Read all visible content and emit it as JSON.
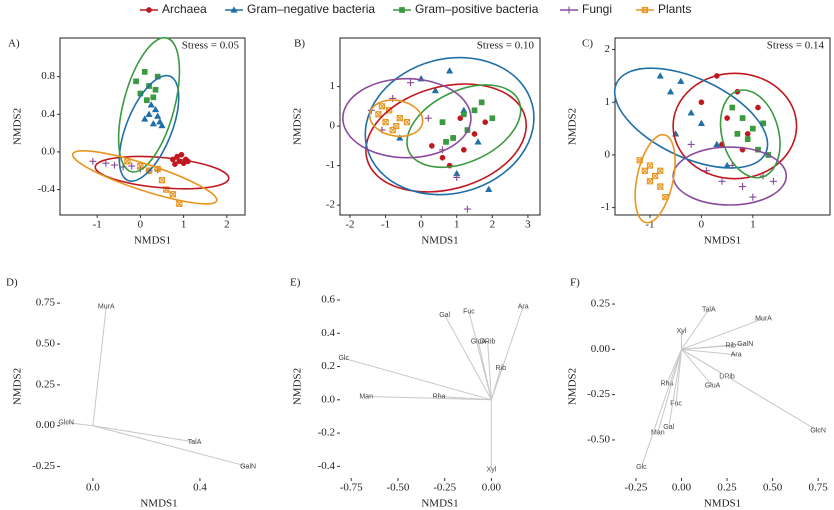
{
  "chart_data": [
    {
      "type": "scatter",
      "panel": "A)",
      "annotation": "Stress = 0.05",
      "x_label": "NMDS1",
      "y_label": "NMDS2",
      "xlim": [
        -1.86,
        2.42
      ],
      "ylim": [
        -0.67,
        1.21
      ],
      "xticks": [
        -1,
        0,
        1,
        2
      ],
      "yticks": [
        {
          "value": 0.8,
          "label": "0.8"
        },
        {
          "value": 0.4,
          "label": "0.4"
        },
        {
          "value": 0,
          "label": "0.0"
        },
        {
          "value": -0.4,
          "label": "-0.4"
        }
      ],
      "series": [
        {
          "name": "Archaea",
          "color": "#c0181f",
          "marker": "circle",
          "x": [
            0.75,
            0.85,
            0.9,
            1.0,
            1.05,
            1.1,
            0.8,
            0.95
          ],
          "y": [
            -0.08,
            -0.05,
            -0.1,
            -0.12,
            -0.08,
            -0.1,
            -0.13,
            -0.03
          ],
          "ellipse": {
            "cx": 0.5,
            "cy": -0.22,
            "rx": 1.55,
            "ry": 0.16,
            "angle": 5
          }
        },
        {
          "name": "Gram–negative bacteria",
          "color": "#1f6fa8",
          "marker": "triangle",
          "x": [
            0.1,
            0.2,
            0.3,
            0.35,
            0.4,
            0.45,
            0.25,
            0.5
          ],
          "y": [
            0.35,
            0.4,
            0.3,
            0.45,
            0.38,
            0.32,
            0.5,
            0.28
          ],
          "ellipse": {
            "cx": 0.2,
            "cy": 0.25,
            "rx": 1.3,
            "ry": 0.24,
            "angle": -68
          }
        },
        {
          "name": "Gram–positive bacteria",
          "color": "#3a9a3f",
          "marker": "square",
          "x": [
            -0.1,
            0.0,
            0.1,
            0.2,
            0.3,
            0.35,
            0.15,
            0.4
          ],
          "y": [
            0.75,
            0.62,
            0.85,
            0.7,
            0.58,
            0.66,
            0.55,
            0.8
          ],
          "ellipse": {
            "cx": 0.2,
            "cy": 0.5,
            "rx": 1.6,
            "ry": 0.27,
            "angle": -75
          }
        },
        {
          "name": "Fungi",
          "color": "#8b4a9c",
          "marker": "plus",
          "x": [
            -1.1,
            -0.8,
            -0.6,
            -0.4,
            -0.2,
            0.0,
            0.2,
            0.4
          ],
          "y": [
            -0.1,
            -0.12,
            -0.14,
            -0.16,
            -0.15,
            -0.18,
            -0.2,
            -0.19
          ]
        },
        {
          "name": "Plants",
          "color": "#e8951f",
          "marker": "xsquare",
          "x": [
            -0.3,
            0.0,
            0.2,
            0.4,
            0.5,
            0.6,
            0.75,
            0.9
          ],
          "y": [
            -0.1,
            -0.15,
            -0.2,
            -0.18,
            -0.3,
            -0.4,
            -0.45,
            -0.55
          ],
          "ellipse": {
            "cx": 0.1,
            "cy": -0.27,
            "rx": 1.75,
            "ry": 0.14,
            "angle": 18
          }
        }
      ]
    },
    {
      "type": "scatter",
      "panel": "B)",
      "annotation": "Stress = 0.10",
      "x_label": "NMDS1",
      "y_label": "NMDS2",
      "xlim": [
        -2.28,
        3.34
      ],
      "ylim": [
        -2.25,
        2.23
      ],
      "xticks": [
        -2,
        -1,
        0,
        1,
        2,
        3
      ],
      "yticks": [
        1,
        0,
        -1,
        -2
      ],
      "series": [
        {
          "color": "#c0181f",
          "marker": "circle",
          "x": [
            0.3,
            0.6,
            0.9,
            1.2,
            1.5,
            1.8,
            0.8,
            1.1
          ],
          "y": [
            -0.5,
            -0.8,
            -0.3,
            -0.6,
            -0.2,
            0.1,
            -1.0,
            0.2
          ],
          "ellipse": {
            "cx": 0.7,
            "cy": -0.3,
            "rx": 2.3,
            "ry": 1.3,
            "angle": -15
          }
        },
        {
          "color": "#1f6fa8",
          "marker": "triangle",
          "x": [
            -0.6,
            0.0,
            0.4,
            0.8,
            1.2,
            1.6,
            1.9,
            1.0
          ],
          "y": [
            -0.3,
            1.2,
            0.9,
            1.4,
            0.4,
            -0.4,
            -1.6,
            -1.2
          ],
          "ellipse": {
            "cx": 0.8,
            "cy": 0.0,
            "rx": 2.4,
            "ry": 1.7,
            "angle": -15
          }
        },
        {
          "color": "#3a9a3f",
          "marker": "square",
          "x": [
            0.6,
            0.9,
            1.2,
            1.5,
            1.7,
            2.0,
            1.3,
            0.7
          ],
          "y": [
            0.1,
            -0.3,
            0.3,
            0.4,
            0.6,
            0.2,
            -0.1,
            -0.4
          ],
          "ellipse": {
            "cx": 1.2,
            "cy": 0.0,
            "rx": 1.7,
            "ry": 0.9,
            "angle": -25
          }
        },
        {
          "color": "#8b4a9c",
          "marker": "plus",
          "x": [
            -1.4,
            -1.1,
            -0.8,
            -0.3,
            0.2,
            0.6,
            1.0,
            1.3
          ],
          "y": [
            0.4,
            -0.1,
            0.7,
            1.1,
            0.2,
            -0.6,
            -1.3,
            -2.1
          ],
          "ellipse": {
            "cx": -0.4,
            "cy": 0.2,
            "rx": 1.8,
            "ry": 1.0,
            "angle": 0
          }
        },
        {
          "color": "#e8951f",
          "marker": "xsquare",
          "x": [
            -1.2,
            -1.0,
            -0.9,
            -0.7,
            -0.6,
            -0.4,
            -0.8,
            -1.1
          ],
          "y": [
            0.3,
            0.1,
            0.4,
            0.0,
            0.2,
            0.1,
            -0.1,
            0.5
          ],
          "ellipse": {
            "cx": -0.7,
            "cy": 0.2,
            "rx": 0.75,
            "ry": 0.45,
            "angle": 10
          }
        }
      ]
    },
    {
      "type": "scatter",
      "panel": "C)",
      "annotation": "Stress = 0.14",
      "x_label": "NMDS1",
      "y_label": "NMDS2",
      "xlim": [
        -1.68,
        2.5
      ],
      "ylim": [
        -1.14,
        2.22
      ],
      "xticks": [
        -1,
        0,
        1
      ],
      "yticks": [
        2,
        1,
        0,
        -1
      ],
      "series": [
        {
          "color": "#c0181f",
          "marker": "circle",
          "x": [
            0.0,
            0.3,
            0.5,
            0.7,
            0.9,
            1.1,
            0.4,
            0.8
          ],
          "y": [
            1.0,
            1.5,
            0.7,
            1.2,
            0.4,
            0.9,
            0.2,
            0.1
          ],
          "ellipse": {
            "cx": 0.65,
            "cy": 0.55,
            "rx": 1.2,
            "ry": 1.0,
            "angle": 0
          }
        },
        {
          "color": "#1f6fa8",
          "marker": "triangle",
          "x": [
            -0.8,
            -0.6,
            -0.4,
            -0.2,
            0.0,
            0.3,
            -0.5,
            0.5
          ],
          "y": [
            1.5,
            1.2,
            1.4,
            0.8,
            0.6,
            0.2,
            0.4,
            -0.2
          ],
          "ellipse": {
            "cx": -0.2,
            "cy": 0.7,
            "rx": 1.6,
            "ry": 0.75,
            "angle": 25
          }
        },
        {
          "color": "#3a9a3f",
          "marker": "square",
          "x": [
            0.6,
            0.8,
            0.9,
            1.0,
            1.1,
            1.3,
            0.7,
            1.2
          ],
          "y": [
            0.9,
            0.7,
            0.3,
            0.5,
            0.1,
            0.0,
            0.4,
            0.6
          ],
          "ellipse": {
            "cx": 0.95,
            "cy": 0.4,
            "rx": 0.55,
            "ry": 0.85,
            "angle": -15
          }
        },
        {
          "color": "#8b4a9c",
          "marker": "plus",
          "x": [
            -0.2,
            0.1,
            0.4,
            0.6,
            0.8,
            1.0,
            1.2,
            1.4
          ],
          "y": [
            0.2,
            -0.3,
            -0.5,
            -0.2,
            -0.6,
            -0.8,
            -0.4,
            -0.5
          ],
          "ellipse": {
            "cx": 0.55,
            "cy": -0.4,
            "rx": 1.1,
            "ry": 0.55,
            "angle": 0
          }
        },
        {
          "color": "#e8951f",
          "marker": "xsquare",
          "x": [
            -1.2,
            -1.1,
            -1.0,
            -0.9,
            -0.8,
            -0.7,
            -1.0,
            -0.8
          ],
          "y": [
            -0.1,
            -0.3,
            -0.5,
            -0.4,
            -0.6,
            -0.8,
            -0.2,
            -0.3
          ],
          "ellipse": {
            "cx": -0.9,
            "cy": -0.45,
            "rx": 0.35,
            "ry": 0.85,
            "angle": 12
          }
        }
      ]
    },
    {
      "type": "biplot",
      "panel": "D)",
      "x_label": "NMDS1",
      "y_label": "NMDS2",
      "xlim": [
        -0.123,
        0.617
      ],
      "ylim": [
        -0.32,
        0.8
      ],
      "xticks": [
        {
          "value": 0,
          "label": "0.0"
        },
        {
          "value": 0.4,
          "label": "0.4"
        }
      ],
      "yticks": [
        0.75,
        {
          "value": 0.5,
          "label": "0.50"
        },
        0.25,
        {
          "value": 0,
          "label": "0.00"
        },
        -0.25
      ],
      "vectors": [
        {
          "label": "MurA",
          "x": 0.05,
          "y": 0.73
        },
        {
          "label": "GlcN",
          "x": -0.1,
          "y": 0.02
        },
        {
          "label": "TalA",
          "x": 0.38,
          "y": -0.1
        },
        {
          "label": "GalN",
          "x": 0.58,
          "y": -0.25
        }
      ]
    },
    {
      "type": "biplot",
      "panel": "E)",
      "x_label": "NMDS1",
      "y_label": "NMDS2",
      "xlim": [
        -0.81,
        0.26
      ],
      "ylim": [
        -0.47,
        0.63
      ],
      "xticks": [
        -0.75,
        {
          "value": -0.5,
          "label": "-0.50"
        },
        -0.25,
        {
          "value": 0,
          "label": "0.00"
        }
      ],
      "yticks": [
        0.6,
        0.4,
        0.2,
        {
          "value": 0,
          "label": "0.0"
        },
        -0.2,
        -0.4
      ],
      "vectors": [
        {
          "label": "Ara",
          "x": 0.17,
          "y": 0.56
        },
        {
          "label": "Fuc",
          "x": -0.12,
          "y": 0.53
        },
        {
          "label": "Gal",
          "x": -0.25,
          "y": 0.51
        },
        {
          "label": "GlcA",
          "x": -0.07,
          "y": 0.35
        },
        {
          "label": "DRib",
          "x": -0.02,
          "y": 0.35
        },
        {
          "label": "Rib",
          "x": 0.05,
          "y": 0.19
        },
        {
          "label": "Rha",
          "x": -0.28,
          "y": 0.02
        },
        {
          "label": "Man",
          "x": -0.67,
          "y": 0.02
        },
        {
          "label": "Glc",
          "x": -0.79,
          "y": 0.25
        },
        {
          "label": "Xyl",
          "x": 0.0,
          "y": -0.42
        }
      ]
    },
    {
      "type": "biplot",
      "panel": "F)",
      "x_label": "NMDS1",
      "y_label": "NMDS2",
      "xlim": [
        -0.365,
        0.815
      ],
      "ylim": [
        -0.71,
        0.3
      ],
      "xticks": [
        -0.25,
        {
          "value": 0,
          "label": "0.00"
        },
        0.25,
        {
          "value": 0.5,
          "label": "0.50"
        },
        0.75
      ],
      "yticks": [
        0.25,
        {
          "value": 0,
          "label": "0.00"
        },
        -0.25,
        {
          "value": -0.5,
          "label": "-0.50"
        }
      ],
      "vectors": [
        {
          "label": "TalA",
          "x": 0.15,
          "y": 0.22
        },
        {
          "label": "MurA",
          "x": 0.45,
          "y": 0.17
        },
        {
          "label": "Xyl",
          "x": 0.0,
          "y": 0.1
        },
        {
          "label": "GalN",
          "x": 0.35,
          "y": 0.03
        },
        {
          "label": "Rib",
          "x": 0.27,
          "y": 0.02
        },
        {
          "label": "Ara",
          "x": 0.3,
          "y": -0.03
        },
        {
          "label": "DRib",
          "x": 0.25,
          "y": -0.15
        },
        {
          "label": "GluA",
          "x": 0.17,
          "y": -0.2
        },
        {
          "label": "Rha",
          "x": -0.08,
          "y": -0.19
        },
        {
          "label": "Fuc",
          "x": -0.03,
          "y": -0.3
        },
        {
          "label": "Gal",
          "x": -0.07,
          "y": -0.43
        },
        {
          "label": "Man",
          "x": -0.13,
          "y": -0.46
        },
        {
          "label": "GlcN",
          "x": 0.75,
          "y": -0.45
        },
        {
          "label": "Glc",
          "x": -0.22,
          "y": -0.65
        }
      ]
    }
  ]
}
